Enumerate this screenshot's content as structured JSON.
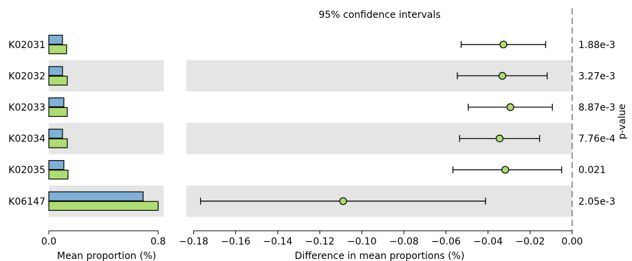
{
  "chart_data": {
    "type": "extended-error-bar",
    "title": "95% confidence intervals",
    "features": [
      "K02031",
      "K02032",
      "K02033",
      "K02034",
      "K02035",
      "K06147"
    ],
    "left_panel": {
      "xlabel": "Mean proportion (%)",
      "xlim": [
        0.0,
        0.8
      ],
      "xticks": [
        0.0,
        0.8
      ],
      "xtick_labels": [
        "0.0",
        "0.8"
      ],
      "series": [
        {
          "color": "#7fb1d6",
          "values": [
            0.1,
            0.1,
            0.11,
            0.1,
            0.11,
            0.69
          ]
        },
        {
          "color": "#addc73",
          "values": [
            0.13,
            0.135,
            0.135,
            0.135,
            0.14,
            0.8
          ]
        }
      ]
    },
    "right_panel": {
      "xlabel": "Difference in mean proportions (%)",
      "xlim": [
        -0.18,
        0.0
      ],
      "xticks": [
        -0.18,
        -0.16,
        -0.14,
        -0.12,
        -0.1,
        -0.08,
        -0.06,
        -0.04,
        -0.02,
        0.0
      ],
      "xtick_labels": [
        "−0.18",
        "−0.16",
        "−0.14",
        "−0.12",
        "−0.10",
        "−0.08",
        "−0.06",
        "−0.04",
        "−0.02",
        "0.00"
      ],
      "point_color": "#addc73",
      "differences": [
        -0.0327,
        -0.0332,
        -0.0294,
        -0.0345,
        -0.0318,
        -0.1089
      ],
      "ci_low": [
        -0.0528,
        -0.0546,
        -0.0494,
        -0.0535,
        -0.0567,
        -0.1767
      ],
      "ci_high": [
        -0.0126,
        -0.0119,
        -0.0094,
        -0.0155,
        -0.005,
        -0.0412
      ]
    },
    "pvalue_label": "p-value",
    "pvalues": [
      "1.88e-3",
      "3.27e-3",
      "8.87e-3",
      "7.76e-4",
      "0.021",
      "2.05e-3"
    ],
    "row_band_color": "#e5e5e5",
    "grid": false
  }
}
